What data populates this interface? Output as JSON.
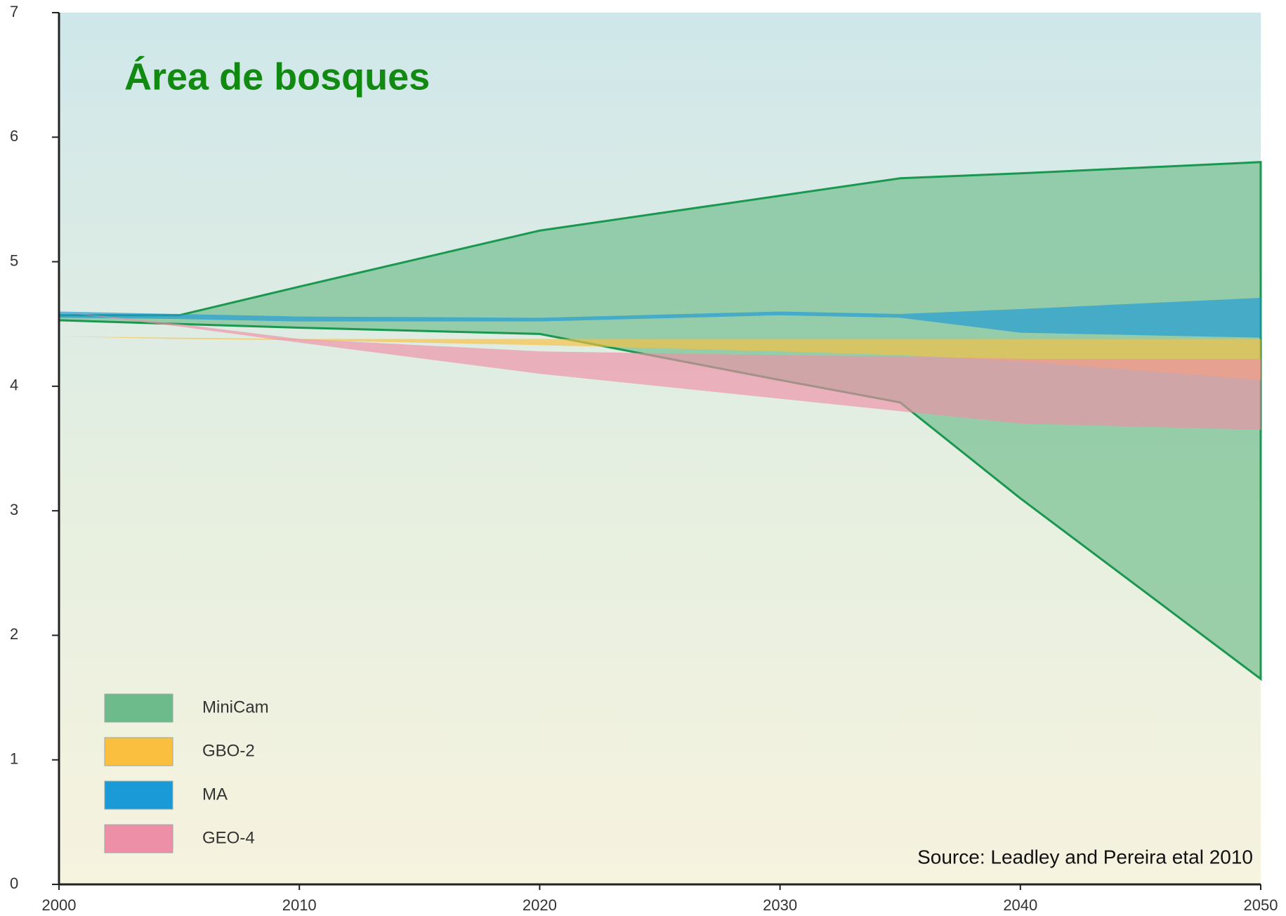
{
  "chart_data": {
    "type": "range_area",
    "title": "Área de bosques",
    "source": "Source: Leadley and Pereira etal 2010",
    "x": [
      2000,
      2005,
      2010,
      2020,
      2030,
      2035,
      2040,
      2050
    ],
    "series": [
      {
        "name": "MiniCam",
        "color": "#6dbb8a",
        "line_color": "#1a9850",
        "upper": [
          4.57,
          4.57,
          4.8,
          5.25,
          5.53,
          5.67,
          5.71,
          5.8
        ],
        "lower": [
          4.53,
          4.5,
          4.47,
          4.42,
          4.05,
          3.87,
          3.1,
          1.65
        ]
      },
      {
        "name": "GBO-2",
        "color": "#fbbf3f",
        "upper": [
          4.4,
          4.39,
          4.38,
          4.38,
          4.38,
          4.38,
          4.38,
          4.38
        ],
        "lower": [
          4.4,
          4.38,
          4.37,
          4.33,
          4.28,
          4.25,
          4.2,
          4.05
        ]
      },
      {
        "name": "MA",
        "color": "#1a9ad6",
        "upper": [
          4.6,
          4.58,
          4.56,
          4.55,
          4.6,
          4.58,
          4.62,
          4.71
        ],
        "lower": [
          4.55,
          4.54,
          4.52,
          4.52,
          4.57,
          4.55,
          4.43,
          4.39
        ]
      },
      {
        "name": "GEO-4",
        "color": "#ee8fa8",
        "upper": [
          4.6,
          4.5,
          4.38,
          4.28,
          4.25,
          4.24,
          4.22,
          4.22
        ],
        "lower": [
          4.6,
          4.48,
          4.35,
          4.1,
          3.9,
          3.8,
          3.7,
          3.65
        ]
      }
    ],
    "xlim": [
      2000,
      2050
    ],
    "xticks": [
      2000,
      2010,
      2020,
      2030,
      2040,
      2050
    ],
    "ylim": [
      0,
      7
    ],
    "yticks": [
      0,
      1,
      2,
      3,
      4,
      5,
      6,
      7
    ],
    "grid": true
  }
}
